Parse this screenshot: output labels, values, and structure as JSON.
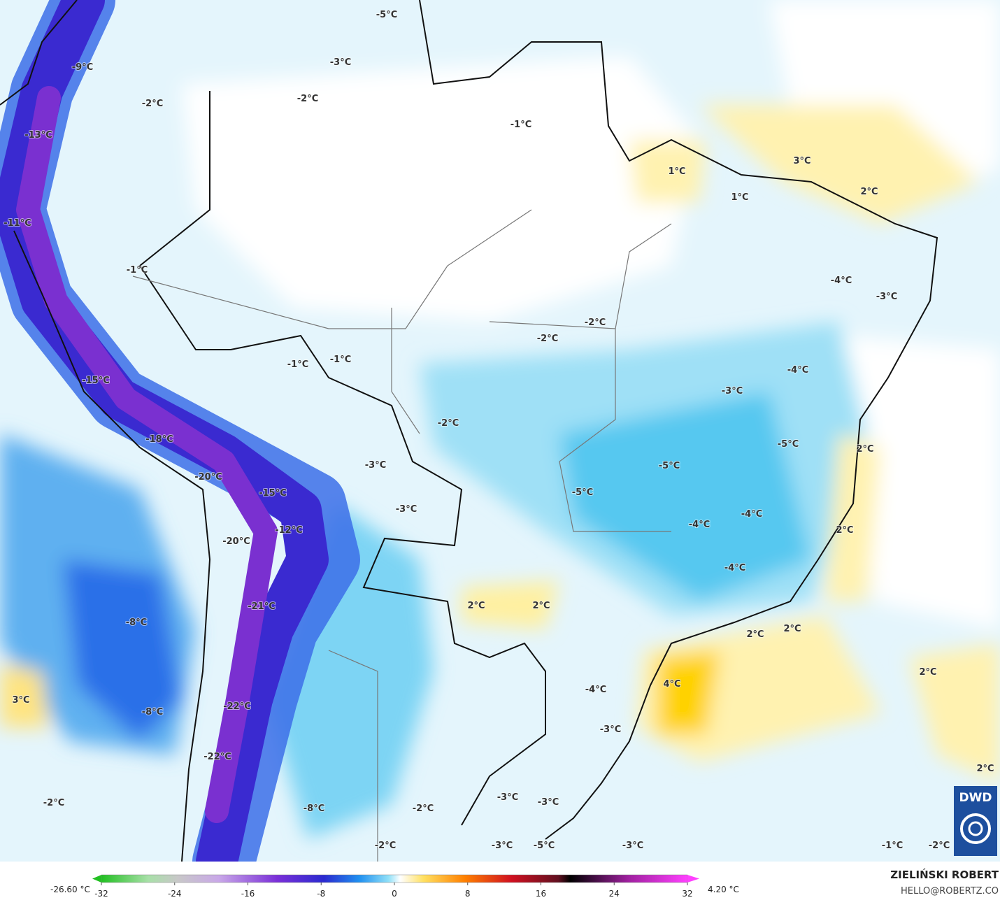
{
  "map": {
    "labels": [
      "-5°C",
      "-9°C",
      "-3°C",
      "-2°C",
      "-2°C",
      "-13°C",
      "-1°C",
      "1°C",
      "3°C",
      "1°C",
      "2°C",
      "-11°C",
      "-1°C",
      "-4°C",
      "-3°C",
      "-2°C",
      "-2°C",
      "-1°C",
      "-1°C",
      "-4°C",
      "-15°C",
      "-3°C",
      "-2°C",
      "-18°C",
      "-5°C",
      "2°C",
      "-3°C",
      "-5°C",
      "-20°C",
      "-5°C",
      "-15°C",
      "-3°C",
      "-4°C",
      "-4°C",
      "-12°C",
      "2°C",
      "-20°C",
      "-4°C",
      "-8°C",
      "-21°C",
      "2°C",
      "2°C",
      "2°C",
      "2°C",
      "2°C",
      "4°C",
      "-4°C",
      "3°C",
      "-8°C",
      "-22°C",
      "-3°C",
      "-22°C",
      "2°C",
      "-3°C",
      "-3°C",
      "-2°C",
      "-8°C",
      "-2°C",
      "-3°C",
      "-3°C",
      "-5°C",
      "-2°C",
      "-1°C",
      "-2°C"
    ],
    "logo": "DWD"
  },
  "colorbar": {
    "min_label": "-26.60 °C",
    "max_label": "4.20 °C",
    "ticks": [
      -32,
      -24,
      -16,
      -8,
      0,
      8,
      16,
      24,
      32
    ]
  },
  "credit": {
    "name": "ZIELIŃSKI ROBERT",
    "email": "HELLO@ROBERTZ.CO"
  }
}
